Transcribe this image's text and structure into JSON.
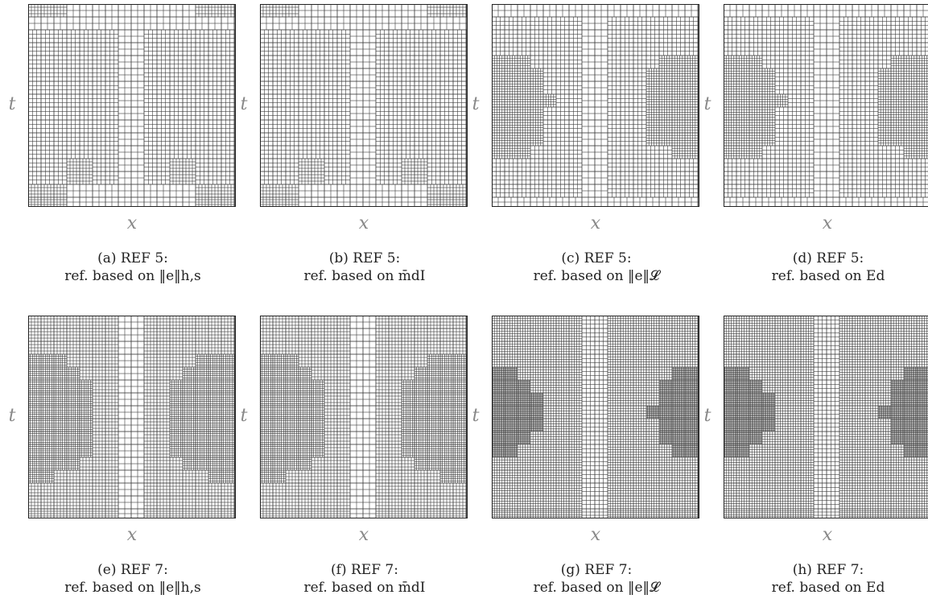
{
  "figure": {
    "axis_t_label": "t",
    "axis_x_label": "x",
    "panels": [
      {
        "id": "a",
        "letter": "(a)",
        "level": "REF 5:",
        "line2": "ref. based on ‖e‖h,s"
      },
      {
        "id": "b",
        "letter": "(b)",
        "level": "REF 5:",
        "line2": "ref. based on m̄dI"
      },
      {
        "id": "c",
        "letter": "(c)",
        "level": "REF 5:",
        "line2": "ref. based on ‖e‖𝓛"
      },
      {
        "id": "d",
        "letter": "(d)",
        "level": "REF 5:",
        "line2": "ref. based on Ed"
      },
      {
        "id": "e",
        "letter": "(e)",
        "level": "REF 7:",
        "line2": "ref. based on ‖e‖h,s"
      },
      {
        "id": "f",
        "letter": "(f)",
        "level": "REF 7:",
        "line2": "ref. based on m̄dI"
      },
      {
        "id": "g",
        "letter": "(g)",
        "level": "REF 7:",
        "line2": "ref. based on ‖e‖𝓛"
      },
      {
        "id": "h",
        "letter": "(h)",
        "level": "REF 7:",
        "line2": "ref. based on Ed"
      }
    ]
  }
}
